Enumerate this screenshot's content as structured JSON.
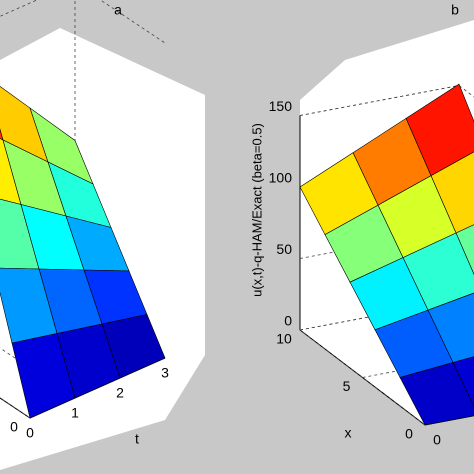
{
  "chart_data": [
    {
      "type": "surface",
      "title": "a",
      "tlabel": "t",
      "colormap": "jet",
      "x": [
        0,
        2,
        4,
        6,
        8,
        10
      ],
      "t": [
        0,
        1,
        2,
        3
      ],
      "z": [
        [
          0,
          30,
          60,
          90,
          120,
          150
        ],
        [
          0,
          25,
          50,
          75,
          100,
          125
        ],
        [
          0,
          20,
          40,
          60,
          80,
          100
        ],
        [
          0,
          15,
          30,
          45,
          60,
          75
        ]
      ],
      "xlim": [
        0,
        10
      ],
      "tlim": [
        0,
        3
      ],
      "zlim": [
        0,
        150
      ],
      "xticks": [
        0
      ],
      "tticks": [
        0,
        1,
        2,
        3
      ],
      "grid": true
    },
    {
      "type": "surface",
      "title": "b",
      "xlabel": "x",
      "zlabel": "u(x,t)-q-HAM/Exact (beta=0.5)",
      "colormap": "jet",
      "x": [
        0,
        2,
        4,
        6,
        8,
        10
      ],
      "t": [
        0,
        1,
        2,
        3
      ],
      "z": [
        [
          0,
          20,
          40,
          60,
          80,
          100
        ],
        [
          0,
          23.4,
          46.8,
          70.2,
          93.6,
          117
        ],
        [
          0,
          26.8,
          53.6,
          80.4,
          107.2,
          134
        ],
        [
          0,
          30.2,
          60.4,
          90.6,
          120.8,
          151
        ]
      ],
      "xlim": [
        0,
        10
      ],
      "tlim": [
        0,
        3
      ],
      "zlim": [
        0,
        150
      ],
      "xticks": [
        0,
        5,
        10
      ],
      "tticks": [
        0
      ],
      "zticks": [
        0,
        50,
        100,
        150
      ],
      "grid": true
    }
  ]
}
